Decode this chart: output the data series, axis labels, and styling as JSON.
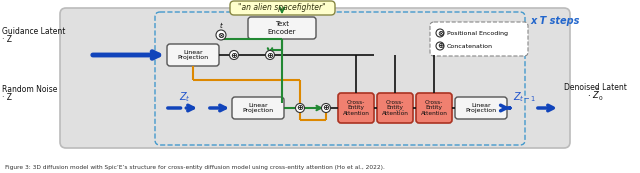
{
  "figsize": [
    6.4,
    1.73
  ],
  "dpi": 100,
  "bg_outer": "#ffffff",
  "bg_main": "#e8e8e8",
  "bg_main_edge": "#aaaaaa",
  "dashed_edge": "#aaaacc",
  "text_prompt": "\"an alien spacefighter\"",
  "prompt_bg": "#ffffcc",
  "prompt_edge": "#888844",
  "encoder_label": "Text\nEncoder",
  "lin_proj_label": "Linear\nProjection",
  "cross_label": "Cross-\nEntity\nAttention",
  "cross_bg": "#f08070",
  "cross_edge": "#aa3322",
  "box_bg": "#f5f5f5",
  "box_edge": "#555555",
  "label_guidance": "Guidance Latent",
  "label_guidance2": "Z",
  "label_guidance_sub": "C",
  "label_noise": "Random Noise",
  "label_noise2": "Z",
  "label_noise_sub": "T",
  "label_zt": "Z",
  "label_zt_sub": "t",
  "label_zt1": "Z",
  "label_zt1_sub": "t−1",
  "label_denoised": "Denoised Latent",
  "label_denoised2": "Ẑ",
  "label_denoised_sub": "0",
  "label_xtT": "x T steps",
  "label_pos_enc": "Positional Encoding",
  "label_concat": "Concatenation",
  "col_blue": "#2255cc",
  "col_blue_arr": "#1144bb",
  "col_orange": "#dd8800",
  "col_green": "#228833",
  "col_black": "#111111",
  "col_cyan_dash": "#4499cc",
  "col_dots": "#555555",
  "caption": "Figure 3: 3D diffusion model with Spic’E’s structure for cross-entity diffusion model using cross-entity attention (Ho et al., 2022)."
}
